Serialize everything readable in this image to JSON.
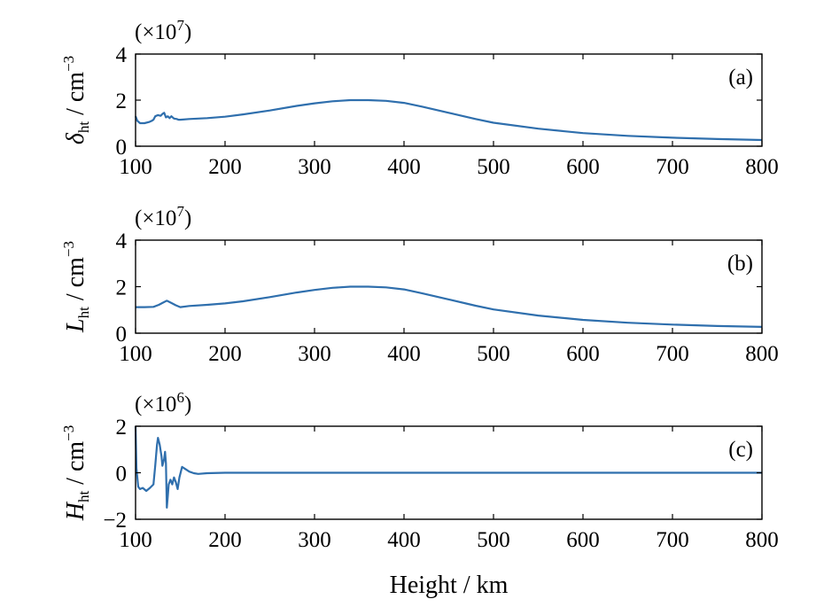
{
  "chart_data": [
    {
      "type": "line",
      "panel_label": "(a)",
      "multiplier": {
        "prefix": "(×10",
        "exp": "7",
        "suffix": ")"
      },
      "ylabel": {
        "symbol": "δ",
        "sub": "ht",
        "unit": " / cm",
        "unit_exp": "−3"
      },
      "xlim": [
        100,
        800
      ],
      "ylim": [
        0,
        4
      ],
      "xticks": [
        "100",
        "200",
        "300",
        "400",
        "500",
        "600",
        "700",
        "800"
      ],
      "yticks": [
        "0",
        "2",
        "4"
      ],
      "series": [
        {
          "x": [
            100,
            102,
            105,
            110,
            115,
            118,
            120,
            122,
            125,
            128,
            130,
            132,
            134,
            136,
            138,
            140,
            143,
            146,
            148,
            150,
            160,
            180,
            200,
            220,
            250,
            280,
            300,
            320,
            340,
            360,
            380,
            400,
            420,
            450,
            480,
            500,
            550,
            600,
            650,
            700,
            750,
            800
          ],
          "y": [
            1.3,
            1.1,
            1.0,
            1.0,
            1.05,
            1.1,
            1.15,
            1.3,
            1.35,
            1.32,
            1.4,
            1.45,
            1.25,
            1.3,
            1.22,
            1.3,
            1.2,
            1.18,
            1.15,
            1.15,
            1.18,
            1.22,
            1.28,
            1.38,
            1.55,
            1.75,
            1.86,
            1.95,
            2.0,
            2.0,
            1.97,
            1.88,
            1.72,
            1.45,
            1.18,
            1.02,
            0.76,
            0.57,
            0.45,
            0.37,
            0.31,
            0.27
          ]
        }
      ]
    },
    {
      "type": "line",
      "panel_label": "(b)",
      "multiplier": {
        "prefix": "(×10",
        "exp": "7",
        "suffix": ")"
      },
      "ylabel": {
        "symbol": "L",
        "sub": "ht",
        "unit": " / cm",
        "unit_exp": "−3"
      },
      "xlim": [
        100,
        800
      ],
      "ylim": [
        0,
        4
      ],
      "xticks": [
        "100",
        "200",
        "300",
        "400",
        "500",
        "600",
        "700",
        "800"
      ],
      "yticks": [
        "0",
        "2",
        "4"
      ],
      "series": [
        {
          "x": [
            100,
            110,
            120,
            126,
            130,
            135,
            140,
            145,
            150,
            160,
            180,
            200,
            220,
            250,
            280,
            300,
            320,
            340,
            360,
            380,
            400,
            420,
            450,
            480,
            500,
            550,
            600,
            650,
            700,
            750,
            800
          ],
          "y": [
            1.12,
            1.12,
            1.13,
            1.22,
            1.3,
            1.4,
            1.3,
            1.2,
            1.12,
            1.17,
            1.22,
            1.28,
            1.37,
            1.55,
            1.75,
            1.86,
            1.95,
            2.0,
            2.0,
            1.97,
            1.88,
            1.72,
            1.45,
            1.18,
            1.02,
            0.76,
            0.57,
            0.45,
            0.37,
            0.31,
            0.27
          ]
        }
      ]
    },
    {
      "type": "line",
      "panel_label": "(c)",
      "multiplier": {
        "prefix": "(×10",
        "exp": "6",
        "suffix": ")"
      },
      "ylabel": {
        "symbol": "H",
        "sub": "ht",
        "unit": " / cm",
        "unit_exp": "−3"
      },
      "xlabel": "Height / km",
      "xlim": [
        100,
        800
      ],
      "ylim": [
        -2,
        2
      ],
      "xticks": [
        "100",
        "200",
        "300",
        "400",
        "500",
        "600",
        "700",
        "800"
      ],
      "yticks": [
        "−2",
        "0",
        "2"
      ],
      "series": [
        {
          "x": [
            100,
            101,
            103,
            105,
            108,
            112,
            116,
            120,
            122,
            124,
            125,
            127,
            129,
            130,
            132,
            133,
            134,
            135,
            136,
            137,
            139,
            141,
            143,
            145,
            147,
            149,
            152,
            156,
            160,
            165,
            170,
            180,
            200,
            800
          ],
          "y": [
            2.0,
            0.2,
            -0.6,
            -0.7,
            -0.65,
            -0.78,
            -0.65,
            -0.5,
            0.3,
            1.2,
            1.5,
            1.2,
            0.7,
            0.3,
            0.6,
            0.9,
            0.4,
            -1.5,
            -1.0,
            -0.5,
            -0.3,
            -0.5,
            -0.2,
            -0.4,
            -0.7,
            -0.2,
            0.25,
            0.15,
            0.05,
            -0.02,
            -0.05,
            -0.02,
            0.0,
            0.0
          ]
        }
      ]
    }
  ]
}
